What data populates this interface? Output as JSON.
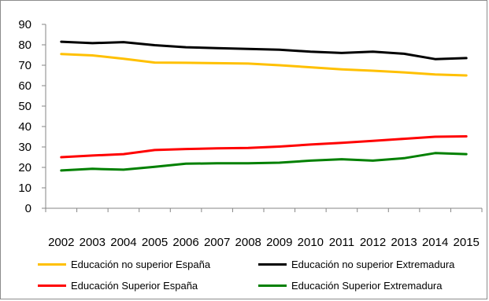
{
  "chart_data": {
    "type": "line",
    "categories": [
      "2002",
      "2003",
      "2004",
      "2005",
      "2006",
      "2007",
      "2008",
      "2009",
      "2010",
      "2011",
      "2012",
      "2013",
      "2014",
      "2015"
    ],
    "ylim": [
      0,
      90
    ],
    "yticks": [
      "0",
      "10",
      "20",
      "30",
      "40",
      "50",
      "60",
      "70",
      "80",
      "90"
    ],
    "grid": false,
    "legend_position": "bottom",
    "series": [
      {
        "name": "Educación no superior España",
        "color": "#ffc000",
        "values": [
          75.5,
          74.8,
          73.2,
          71.3,
          71.2,
          71.0,
          70.8,
          70.0,
          69.0,
          68.0,
          67.3,
          66.5,
          65.5,
          65.0
        ]
      },
      {
        "name": "Educación no superior Extremadura",
        "color": "#000000",
        "values": [
          81.5,
          80.8,
          81.3,
          79.8,
          78.8,
          78.4,
          78.0,
          77.6,
          76.6,
          76.0,
          76.6,
          75.6,
          73.0,
          73.5
        ]
      },
      {
        "name": "Educación Superior España",
        "color": "#ff0000",
        "values": [
          25.0,
          25.8,
          26.5,
          28.5,
          29.0,
          29.3,
          29.5,
          30.2,
          31.2,
          32.0,
          33.0,
          34.0,
          35.0,
          35.2
        ]
      },
      {
        "name": "Educación Superior Extremadura",
        "color": "#008000",
        "values": [
          18.5,
          19.3,
          18.9,
          20.3,
          21.8,
          22.0,
          22.0,
          22.3,
          23.3,
          24.0,
          23.3,
          24.5,
          27.0,
          26.5
        ]
      }
    ]
  }
}
